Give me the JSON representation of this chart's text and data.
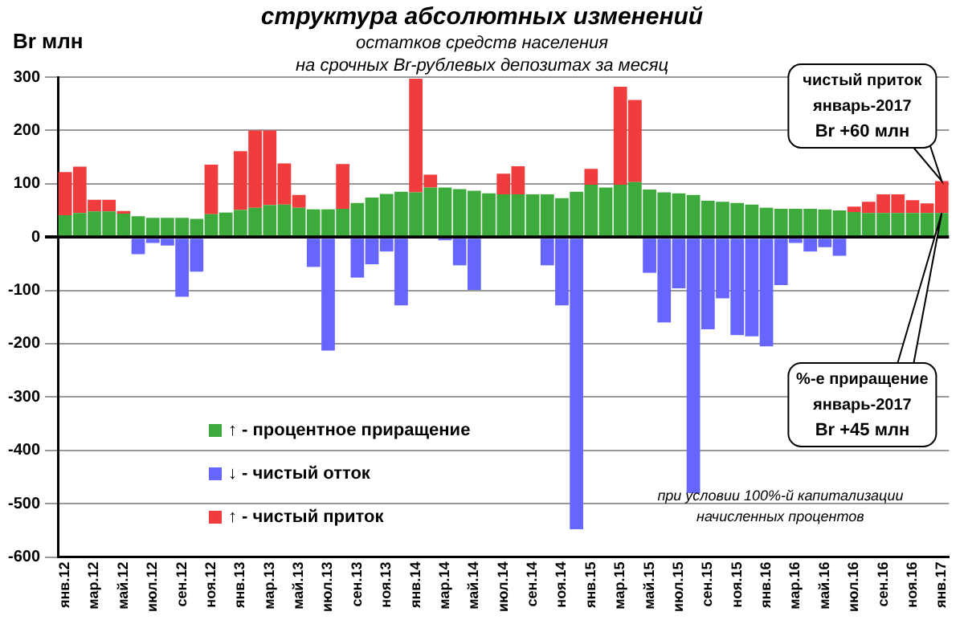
{
  "chart_data": {
    "type": "bar",
    "stacked": true,
    "title": "структура абсолютных изменений",
    "subtitle": "остатков средств населения\nна срочных Br-рублевых депозитах за месяц",
    "ylabel": "Br млн",
    "categories": [
      "янв.12",
      null,
      "мар.12",
      null,
      "май.12",
      null,
      "июл.12",
      null,
      "сен.12",
      null,
      "ноя.12",
      null,
      "янв.13",
      null,
      "мар.13",
      null,
      "май.13",
      null,
      "июл.13",
      null,
      "сен.13",
      null,
      "ноя.13",
      null,
      "янв.14",
      null,
      "мар.14",
      null,
      "май.14",
      null,
      "июл.14",
      null,
      "сен.14",
      null,
      "ноя.14",
      null,
      "янв.15",
      null,
      "мар.15",
      null,
      "май.15",
      null,
      "июл.15",
      null,
      "сен.15",
      null,
      "ноя.15",
      null,
      "янв.16",
      null,
      "мар.16",
      null,
      "май.16",
      null,
      "июл.16",
      null,
      "сен.16",
      null,
      "ноя.16",
      null,
      "янв.17"
    ],
    "series": [
      {
        "name": "↑ - процентное приращение",
        "color": "#3cab3c",
        "values": [
          41,
          45,
          48,
          48,
          44,
          39,
          36,
          36,
          36,
          34,
          43,
          46,
          51,
          55,
          60,
          61,
          55,
          52,
          52,
          53,
          64,
          74,
          81,
          85,
          84,
          93,
          93,
          90,
          87,
          82,
          80,
          80,
          80,
          80,
          73,
          85,
          98,
          93,
          98,
          103,
          89,
          84,
          82,
          79,
          68,
          66,
          64,
          61,
          55,
          53,
          53,
          53,
          52,
          50,
          47,
          45,
          45,
          45,
          45,
          45,
          45
        ]
      },
      {
        "name": "↓ - чистый отток",
        "color": "#6666ff",
        "values": [
          null,
          null,
          null,
          null,
          null,
          -32,
          -11,
          -16,
          -112,
          -65,
          null,
          null,
          null,
          null,
          null,
          null,
          null,
          -56,
          -213,
          null,
          -76,
          -51,
          -27,
          -128,
          null,
          null,
          -6,
          -53,
          -99,
          null,
          null,
          null,
          null,
          -53,
          -128,
          -548,
          null,
          null,
          null,
          null,
          -67,
          -160,
          -96,
          -480,
          -173,
          -115,
          -184,
          -186,
          -205,
          -90,
          -11,
          -27,
          -19,
          -35,
          null,
          null,
          null,
          null,
          null,
          null,
          null
        ]
      },
      {
        "name": "↑ - чистый приток",
        "color": "#f03c3c",
        "values": [
          81,
          87,
          22,
          22,
          5,
          null,
          null,
          null,
          null,
          null,
          93,
          null,
          110,
          145,
          140,
          77,
          24,
          null,
          null,
          84,
          null,
          null,
          null,
          null,
          213,
          24,
          null,
          null,
          null,
          null,
          39,
          53,
          null,
          null,
          null,
          null,
          30,
          null,
          184,
          154,
          null,
          null,
          null,
          null,
          null,
          null,
          null,
          null,
          null,
          null,
          null,
          null,
          null,
          null,
          10,
          21,
          35,
          35,
          24,
          18,
          60
        ]
      }
    ],
    "ylim": [
      -600,
      300
    ],
    "yticks": [
      -600,
      -500,
      -400,
      -300,
      -200,
      -100,
      0,
      100,
      200,
      300
    ],
    "grid": "y",
    "legend": "bottom left",
    "annotations": [
      {
        "text": "чистый приток\nянварь-2017\nBr +60 млн",
        "x": "янв.17",
        "y": 105
      },
      {
        "text": "%-е приращение\nянварь-2017\nBr +45 млн",
        "x": "янв.17",
        "y": 45
      },
      "при условии 100%-й капитализации\nначисленных процентов"
    ]
  }
}
